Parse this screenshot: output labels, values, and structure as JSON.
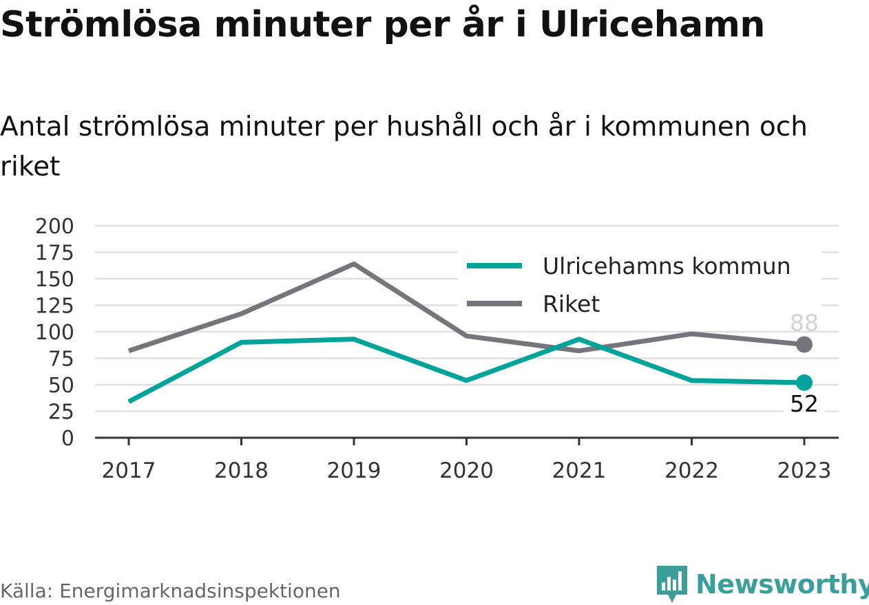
{
  "title": "Strömlösa minuter per år i Ulricehamn",
  "subtitle": "Antal strömlösa minuter per hushåll och år i kommunen och riket",
  "source": "Källa: Energimarknadsinspektionen",
  "brand": "Newsworthy",
  "colors": {
    "kommun": "#00a39a",
    "riket": "#76757c",
    "grid": "#e0e0e0",
    "axis": "#333333",
    "brand": "#3b9e9a"
  },
  "chart_data": {
    "type": "line",
    "x": [
      "2017",
      "2018",
      "2019",
      "2020",
      "2021",
      "2022",
      "2023"
    ],
    "yticks": [
      "0",
      "25",
      "50",
      "75",
      "100",
      "125",
      "150",
      "175",
      "200"
    ],
    "ylim": [
      0,
      200
    ],
    "grid": true,
    "legend_position": "top-right",
    "series": [
      {
        "name": "Ulricehamns kommun",
        "values": [
          34,
          90,
          93,
          54,
          93,
          54,
          52
        ],
        "end_label": "52"
      },
      {
        "name": "Riket",
        "values": [
          82,
          117,
          164,
          96,
          82,
          98,
          88
        ],
        "end_label": "88"
      }
    ]
  }
}
